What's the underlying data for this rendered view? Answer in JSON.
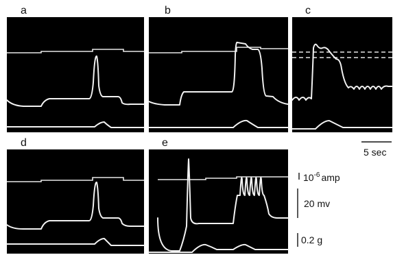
{
  "panels": [
    {
      "id": "a",
      "label": "a"
    },
    {
      "id": "b",
      "label": "b"
    },
    {
      "id": "c",
      "label": "c"
    },
    {
      "id": "d",
      "label": "d"
    },
    {
      "id": "e",
      "label": "e"
    }
  ],
  "scale_bars": {
    "time": "5 sec",
    "current": "10",
    "current_exp": "-6",
    "current_unit": "amp",
    "voltage": "20 mv",
    "force": "0.2 g"
  },
  "colors": {
    "panel_bg": "#000000",
    "trace": "#f2f2f2",
    "page_bg": "#ffffff"
  }
}
